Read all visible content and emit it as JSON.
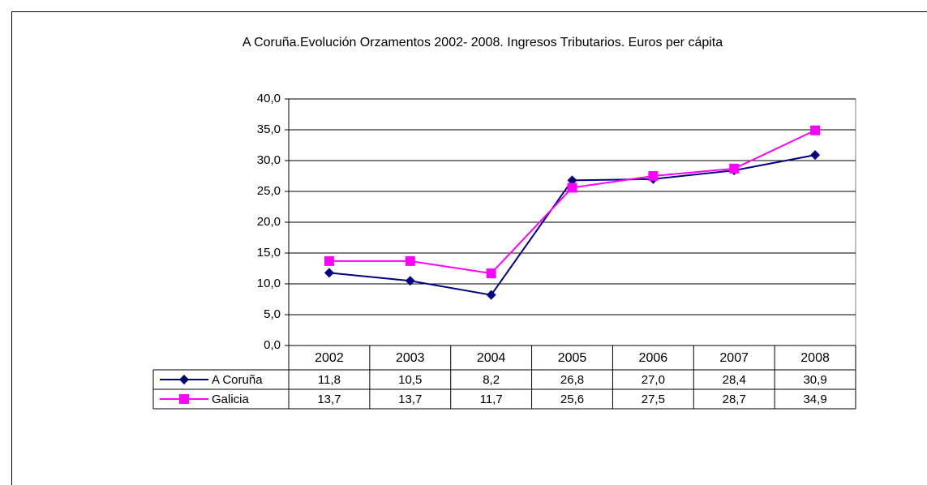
{
  "chart_data": {
    "type": "line",
    "title": "A Coruña.Evolución Orzamentos 2002- 2008. Ingresos Tributarios. Euros per cápita",
    "categories": [
      "2002",
      "2003",
      "2004",
      "2005",
      "2006",
      "2007",
      "2008"
    ],
    "series": [
      {
        "name": "A Coruña",
        "color": "#000080",
        "marker": "diamond",
        "values": [
          11.8,
          10.5,
          8.2,
          26.8,
          27.0,
          28.4,
          30.9
        ],
        "value_labels": [
          "11,8",
          "10,5",
          "8,2",
          "26,8",
          "27,0",
          "28,4",
          "30,9"
        ]
      },
      {
        "name": "Galicia",
        "color": "#ff00ff",
        "marker": "square",
        "values": [
          13.7,
          13.7,
          11.7,
          25.6,
          27.5,
          28.7,
          34.9
        ],
        "value_labels": [
          "13,7",
          "13,7",
          "11,7",
          "25,6",
          "27,5",
          "28,7",
          "34,9"
        ]
      }
    ],
    "ylim": [
      0,
      40
    ],
    "yticks": [
      {
        "value": 0,
        "label": "0,0"
      },
      {
        "value": 5,
        "label": "5,0"
      },
      {
        "value": 10,
        "label": "10,0"
      },
      {
        "value": 15,
        "label": "15,0"
      },
      {
        "value": 20,
        "label": "20,0"
      },
      {
        "value": 25,
        "label": "25,0"
      },
      {
        "value": 30,
        "label": "30,0"
      },
      {
        "value": 35,
        "label": "35,0"
      },
      {
        "value": 40,
        "label": "40,0"
      }
    ],
    "grid": true
  }
}
